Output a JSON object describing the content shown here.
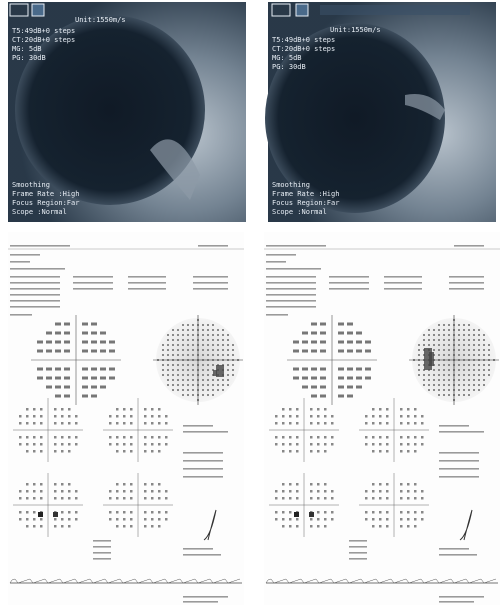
{
  "ultrasound_panels": [
    {
      "header": [
        "Unit:1550m/s",
        "T5:49dB+0 steps",
        "CT:20dB+0 steps",
        "MG: 5dB",
        "PG: 30dB"
      ],
      "settings": [
        "Smoothing",
        "Frame Rate :High",
        "Focus Region:Far",
        "Scope :Normal"
      ]
    },
    {
      "header": [
        "Unit:1550m/s",
        "T5:49dB+0 steps",
        "CT:20dB+0 steps",
        "MG: 5dB",
        "PG: 30dB"
      ],
      "settings": [
        "Smoothing",
        "Frame Rate :High",
        "Focus Region:Far",
        "Scope :Normal"
      ]
    }
  ]
}
